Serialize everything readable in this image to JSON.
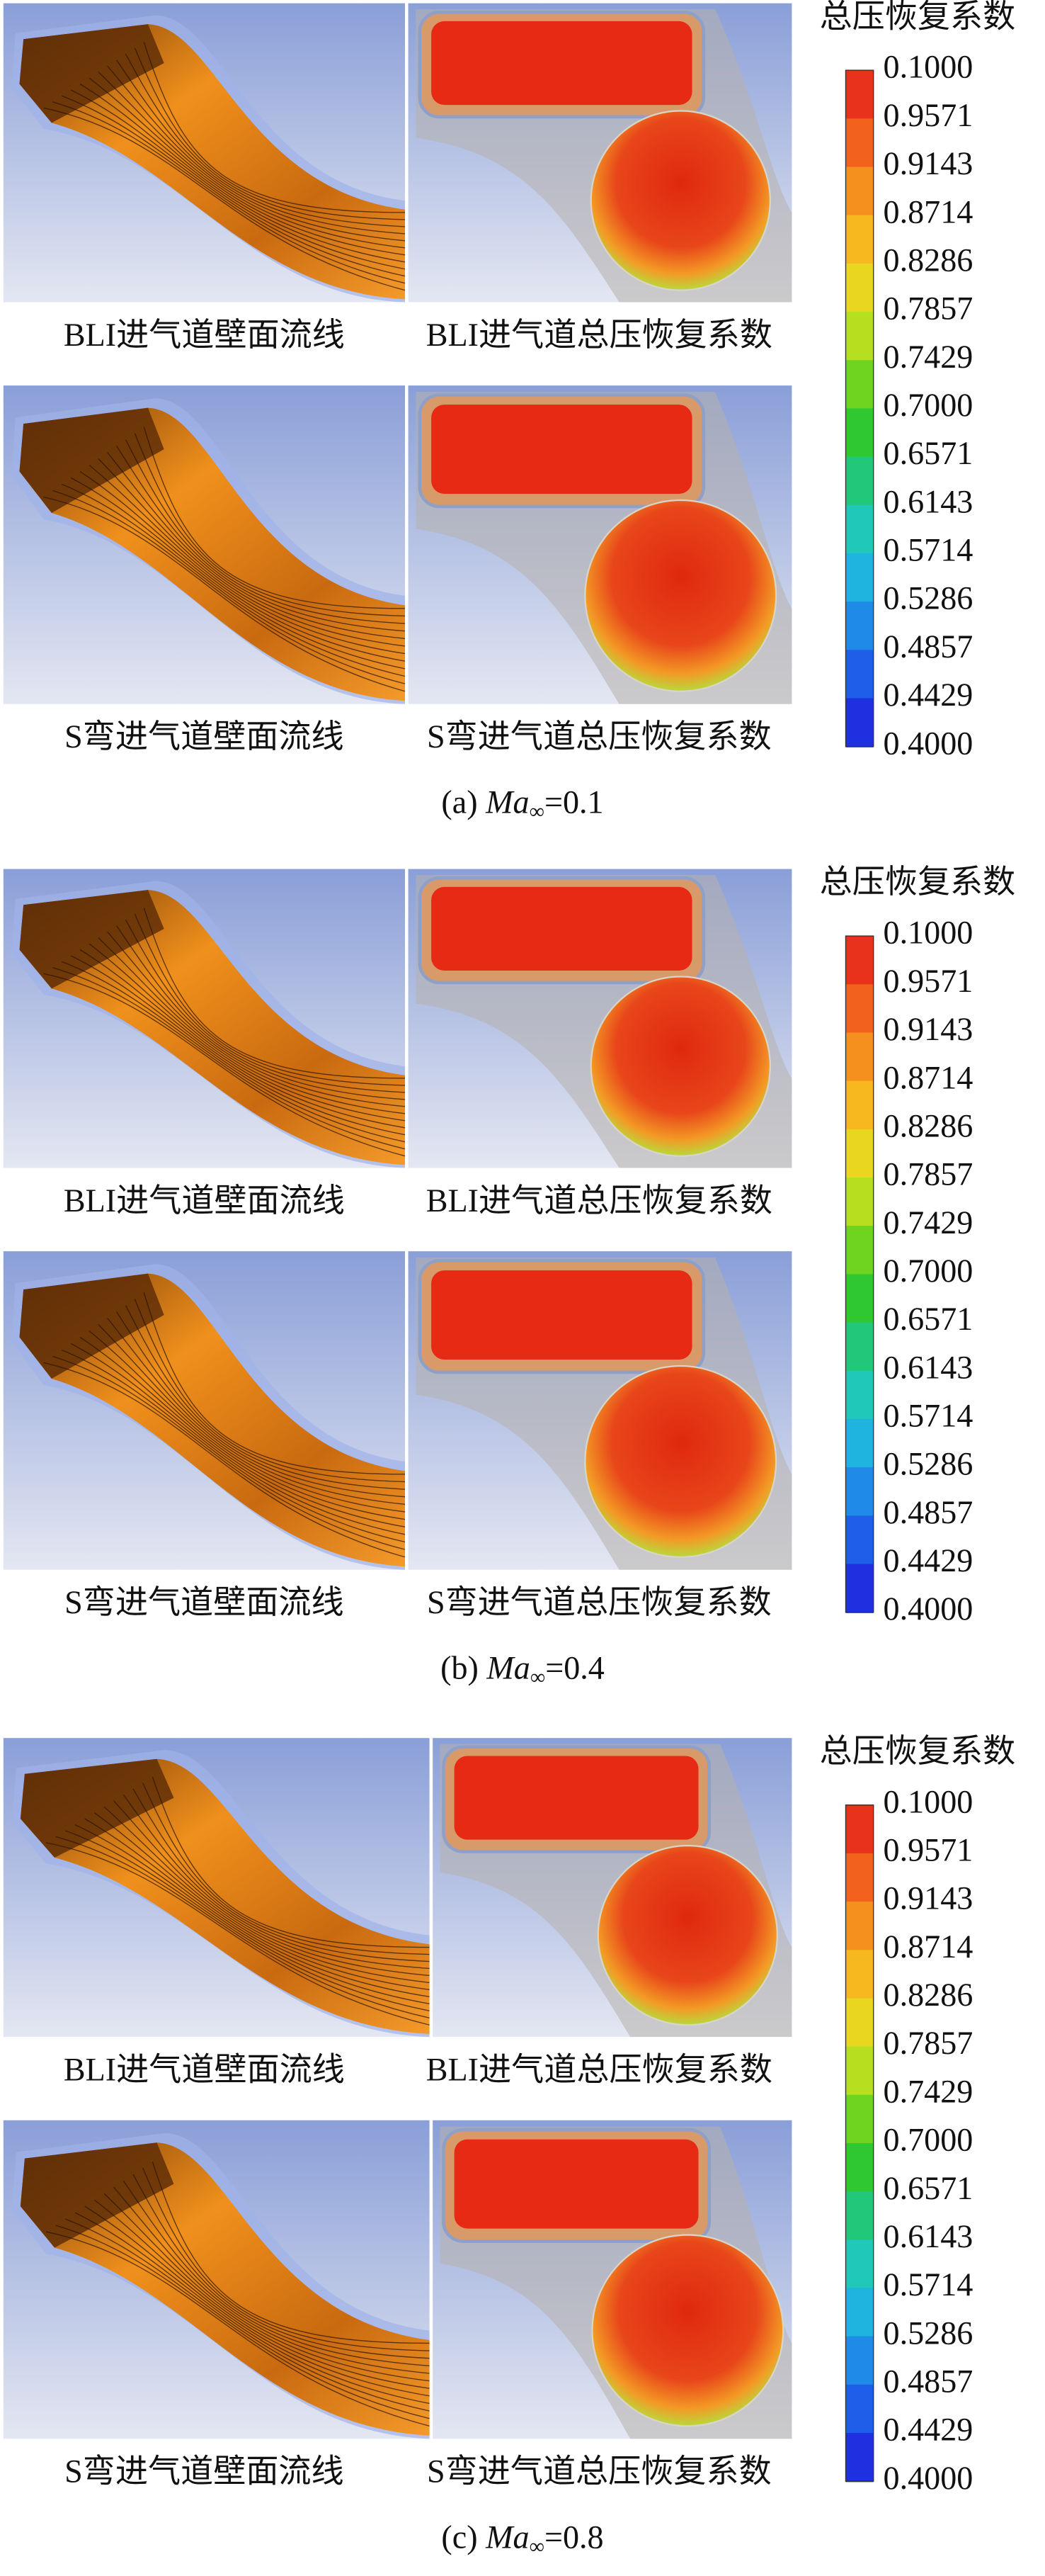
{
  "panels": [
    {
      "rows": [
        {
          "left": "BLI进气道壁面流线",
          "right": "BLI进气道总压恢复系数"
        },
        {
          "left": "S弯进气道壁面流线",
          "right": "S弯进气道总压恢复系数"
        }
      ],
      "colorbar": {
        "title": "总压恢复系数",
        "ticks": [
          "0.1000",
          "0.9571",
          "0.9143",
          "0.8714",
          "0.8286",
          "0.7857",
          "0.7429",
          "0.7000",
          "0.6571",
          "0.6143",
          "0.5714",
          "0.5286",
          "0.4857",
          "0.4429",
          "0.4000"
        ]
      },
      "caption": {
        "label": "(a)",
        "symbol": "Ma",
        "subscript": "∞",
        "value": "=0.1"
      }
    },
    {
      "rows": [
        {
          "left": "BLI进气道壁面流线",
          "right": "BLI进气道总压恢复系数"
        },
        {
          "left": "S弯进气道壁面流线",
          "right": "S弯进气道总压恢复系数"
        }
      ],
      "colorbar": {
        "title": "总压恢复系数",
        "ticks": [
          "0.1000",
          "0.9571",
          "0.9143",
          "0.8714",
          "0.8286",
          "0.7857",
          "0.7429",
          "0.7000",
          "0.6571",
          "0.6143",
          "0.5714",
          "0.5286",
          "0.4857",
          "0.4429",
          "0.4000"
        ]
      },
      "caption": {
        "label": "(b)",
        "symbol": "Ma",
        "subscript": "∞",
        "value": "=0.4"
      }
    },
    {
      "rows": [
        {
          "left": "BLI进气道壁面流线",
          "right": "BLI进气道总压恢复系数"
        },
        {
          "left": "S弯进气道壁面流线",
          "right": "S弯进气道总压恢复系数"
        }
      ],
      "colorbar": {
        "title": "总压恢复系数",
        "ticks": [
          "0.1000",
          "0.9571",
          "0.9143",
          "0.8714",
          "0.8286",
          "0.7857",
          "0.7429",
          "0.7000",
          "0.6571",
          "0.6143",
          "0.5714",
          "0.5286",
          "0.4857",
          "0.4429",
          "0.4000"
        ]
      },
      "caption": {
        "label": "(c)",
        "symbol": "Ma",
        "subscript": "∞",
        "value": "=0.8"
      }
    }
  ]
}
